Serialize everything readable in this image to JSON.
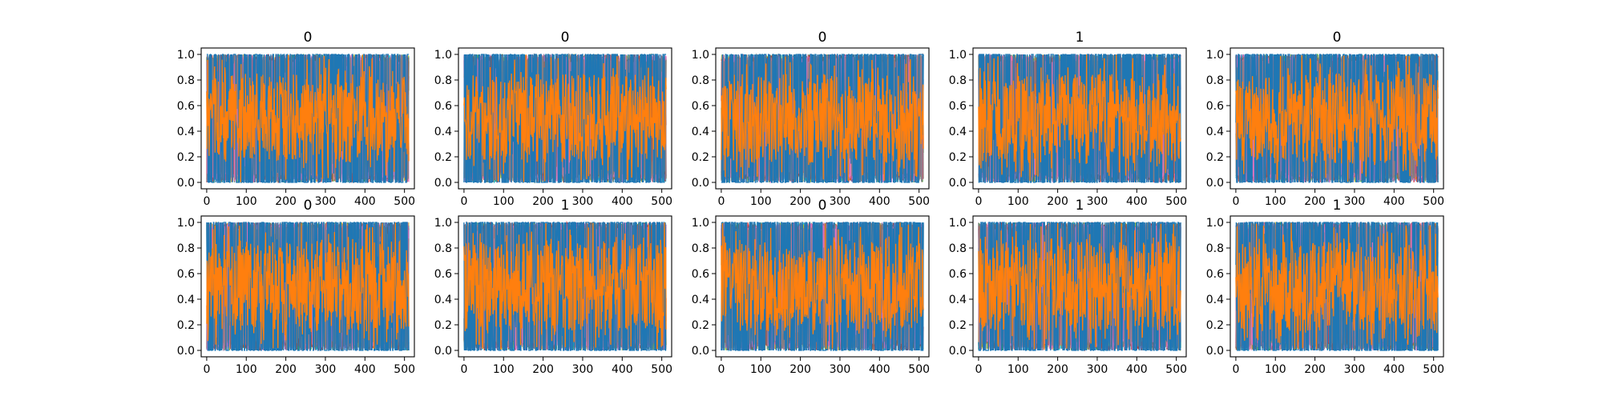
{
  "figure": {
    "background": "#ffffff",
    "series_colors": [
      "#1f77b4",
      "#ff7f0e",
      "#2ca02c",
      "#17becf",
      "#bcbd22",
      "#d62728",
      "#9467bd",
      "#8c564b",
      "#e377c2",
      "#7f7f7f"
    ]
  },
  "chart_data": [
    {
      "type": "line",
      "title": "0",
      "x_ticks": [
        "0",
        "100",
        "200",
        "300",
        "400",
        "500"
      ],
      "y_ticks": [
        "0.0",
        "0.2",
        "0.4",
        "0.6",
        "0.8",
        "1.0"
      ],
      "xlim": [
        -14,
        525
      ],
      "ylim": [
        -0.05,
        1.05
      ],
      "x_range": [
        0,
        511
      ],
      "y_range": [
        0,
        1
      ],
      "n_points": 512,
      "grid": false,
      "legend": "none"
    },
    {
      "type": "line",
      "title": "0",
      "x_ticks": [
        "0",
        "100",
        "200",
        "300",
        "400",
        "500"
      ],
      "y_ticks": [
        "0.0",
        "0.2",
        "0.4",
        "0.6",
        "0.8",
        "1.0"
      ],
      "xlim": [
        -14,
        525
      ],
      "ylim": [
        -0.05,
        1.05
      ],
      "x_range": [
        0,
        511
      ],
      "y_range": [
        0,
        1
      ],
      "n_points": 512,
      "grid": false,
      "legend": "none"
    },
    {
      "type": "line",
      "title": "0",
      "x_ticks": [
        "0",
        "100",
        "200",
        "300",
        "400",
        "500"
      ],
      "y_ticks": [
        "0.0",
        "0.2",
        "0.4",
        "0.6",
        "0.8",
        "1.0"
      ],
      "xlim": [
        -14,
        525
      ],
      "ylim": [
        -0.05,
        1.05
      ],
      "x_range": [
        0,
        511
      ],
      "y_range": [
        0,
        1
      ],
      "n_points": 512,
      "grid": false,
      "legend": "none"
    },
    {
      "type": "line",
      "title": "1",
      "x_ticks": [
        "0",
        "100",
        "200",
        "300",
        "400",
        "500"
      ],
      "y_ticks": [
        "0.0",
        "0.2",
        "0.4",
        "0.6",
        "0.8",
        "1.0"
      ],
      "xlim": [
        -14,
        525
      ],
      "ylim": [
        -0.05,
        1.05
      ],
      "x_range": [
        0,
        511
      ],
      "y_range": [
        0,
        1
      ],
      "n_points": 512,
      "grid": false,
      "legend": "none"
    },
    {
      "type": "line",
      "title": "0",
      "x_ticks": [
        "0",
        "100",
        "200",
        "300",
        "400",
        "500"
      ],
      "y_ticks": [
        "0.0",
        "0.2",
        "0.4",
        "0.6",
        "0.8",
        "1.0"
      ],
      "xlim": [
        -14,
        525
      ],
      "ylim": [
        -0.05,
        1.05
      ],
      "x_range": [
        0,
        511
      ],
      "y_range": [
        0,
        1
      ],
      "n_points": 512,
      "grid": false,
      "legend": "none"
    },
    {
      "type": "line",
      "title": "0",
      "x_ticks": [
        "0",
        "100",
        "200",
        "300",
        "400",
        "500"
      ],
      "y_ticks": [
        "0.0",
        "0.2",
        "0.4",
        "0.6",
        "0.8",
        "1.0"
      ],
      "xlim": [
        -14,
        525
      ],
      "ylim": [
        -0.05,
        1.05
      ],
      "x_range": [
        0,
        511
      ],
      "y_range": [
        0,
        1
      ],
      "n_points": 512,
      "grid": false,
      "legend": "none"
    },
    {
      "type": "line",
      "title": "1",
      "x_ticks": [
        "0",
        "100",
        "200",
        "300",
        "400",
        "500"
      ],
      "y_ticks": [
        "0.0",
        "0.2",
        "0.4",
        "0.6",
        "0.8",
        "1.0"
      ],
      "xlim": [
        -14,
        525
      ],
      "ylim": [
        -0.05,
        1.05
      ],
      "x_range": [
        0,
        511
      ],
      "y_range": [
        0,
        1
      ],
      "n_points": 512,
      "grid": false,
      "legend": "none"
    },
    {
      "type": "line",
      "title": "0",
      "x_ticks": [
        "0",
        "100",
        "200",
        "300",
        "400",
        "500"
      ],
      "y_ticks": [
        "0.0",
        "0.2",
        "0.4",
        "0.6",
        "0.8",
        "1.0"
      ],
      "xlim": [
        -14,
        525
      ],
      "ylim": [
        -0.05,
        1.05
      ],
      "x_range": [
        0,
        511
      ],
      "y_range": [
        0,
        1
      ],
      "n_points": 512,
      "grid": false,
      "legend": "none"
    },
    {
      "type": "line",
      "title": "1",
      "x_ticks": [
        "0",
        "100",
        "200",
        "300",
        "400",
        "500"
      ],
      "y_ticks": [
        "0.0",
        "0.2",
        "0.4",
        "0.6",
        "0.8",
        "1.0"
      ],
      "xlim": [
        -14,
        525
      ],
      "ylim": [
        -0.05,
        1.05
      ],
      "x_range": [
        0,
        511
      ],
      "y_range": [
        0,
        1
      ],
      "n_points": 512,
      "grid": false,
      "legend": "none"
    },
    {
      "type": "line",
      "title": "1",
      "x_ticks": [
        "0",
        "100",
        "200",
        "300",
        "400",
        "500"
      ],
      "y_ticks": [
        "0.0",
        "0.2",
        "0.4",
        "0.6",
        "0.8",
        "1.0"
      ],
      "xlim": [
        -14,
        525
      ],
      "ylim": [
        -0.05,
        1.05
      ],
      "x_range": [
        0,
        511
      ],
      "y_range": [
        0,
        1
      ],
      "n_points": 512,
      "grid": false,
      "legend": "none"
    }
  ]
}
